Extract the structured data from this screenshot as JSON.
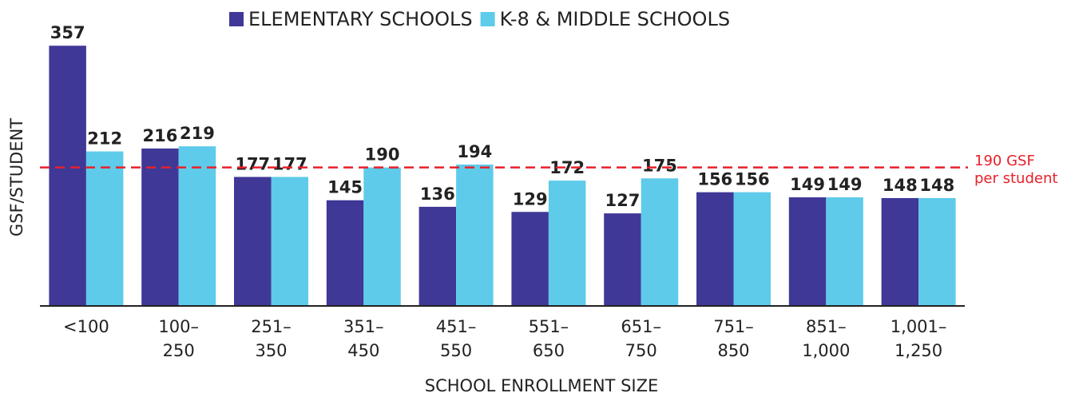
{
  "chart_data": {
    "type": "bar",
    "x_label": "SCHOOL ENROLLMENT SIZE",
    "y_label": "GSF/STUDENT",
    "categories": [
      [
        "<100"
      ],
      [
        "100–",
        "250"
      ],
      [
        "251–",
        "350"
      ],
      [
        "351–",
        "450"
      ],
      [
        "451–",
        "550"
      ],
      [
        "551–",
        "650"
      ],
      [
        "651–",
        "750"
      ],
      [
        "751–",
        "850"
      ],
      [
        "851–",
        "1,000"
      ],
      [
        "1,001–",
        "1,250"
      ]
    ],
    "series": [
      {
        "name": "ELEMENTARY SCHOOLS",
        "color": "#3f3897",
        "values": [
          357,
          216,
          177,
          145,
          136,
          129,
          127,
          156,
          149,
          148
        ]
      },
      {
        "name": "K-8 & MIDDLE SCHOOLS",
        "color": "#5ecbea",
        "values": [
          212,
          219,
          177,
          190,
          194,
          172,
          175,
          156,
          149,
          148
        ]
      }
    ],
    "ylim": [
      0,
      400
    ],
    "legend": "top",
    "reference_line": {
      "value": 190,
      "label": [
        "190 GSF",
        "per student"
      ],
      "color": "#e8202a"
    }
  }
}
